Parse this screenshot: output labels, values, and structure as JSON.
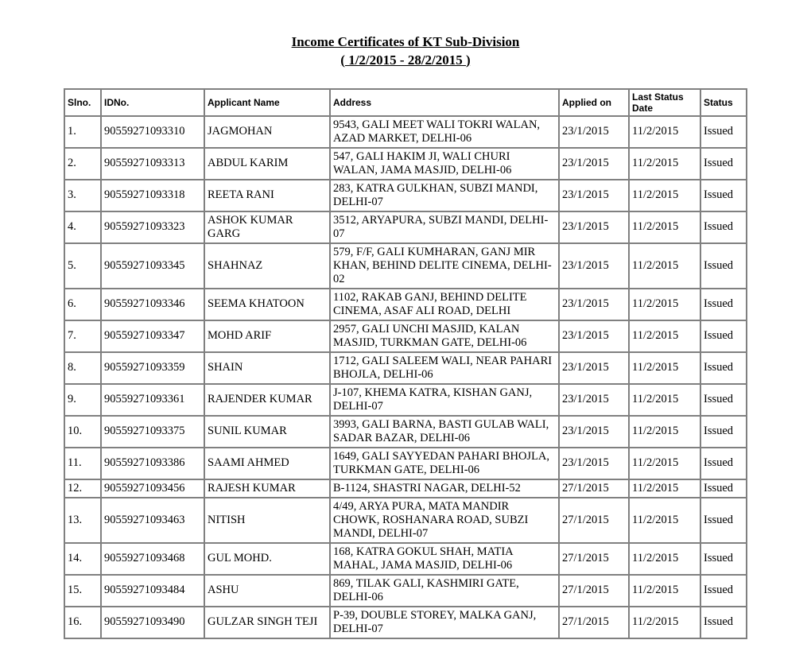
{
  "title": "Income Certificates of KT Sub-Division",
  "subtitle": "( 1/2/2015 - 28/2/2015 )",
  "columns": [
    "Slno.",
    "IDNo.",
    "Applicant Name",
    "Address",
    "Applied on",
    "Last Status Date",
    "Status"
  ],
  "rows": [
    {
      "slno": "1.",
      "idno": "90559271093310",
      "name": "JAGMOHAN",
      "address": "9543, GALI MEET WALI TOKRI WALAN, AZAD MARKET, DELHI-06",
      "applied": "23/1/2015",
      "lastdate": "11/2/2015",
      "status": "Issued"
    },
    {
      "slno": "2.",
      "idno": "90559271093313",
      "name": "ABDUL KARIM",
      "address": "547, GALI HAKIM JI, WALI CHURI WALAN, JAMA MASJID, DELHI-06",
      "applied": "23/1/2015",
      "lastdate": "11/2/2015",
      "status": "Issued"
    },
    {
      "slno": "3.",
      "idno": "90559271093318",
      "name": "REETA RANI",
      "address": "283, KATRA GULKHAN, SUBZI MANDI, DELHI-07",
      "applied": "23/1/2015",
      "lastdate": "11/2/2015",
      "status": "Issued"
    },
    {
      "slno": "4.",
      "idno": "90559271093323",
      "name": "ASHOK KUMAR GARG",
      "address": "3512, ARYAPURA, SUBZI MANDI, DELHI-07",
      "applied": "23/1/2015",
      "lastdate": "11/2/2015",
      "status": "Issued"
    },
    {
      "slno": "5.",
      "idno": "90559271093345",
      "name": "SHAHNAZ",
      "address": "579, F/F, GALI KUMHARAN, GANJ MIR KHAN, BEHIND DELITE CINEMA, DELHI-02",
      "applied": "23/1/2015",
      "lastdate": "11/2/2015",
      "status": "Issued"
    },
    {
      "slno": "6.",
      "idno": "90559271093346",
      "name": "SEEMA KHATOON",
      "address": "1102, RAKAB GANJ, BEHIND DELITE CINEMA, ASAF ALI ROAD, DELHI",
      "applied": "23/1/2015",
      "lastdate": "11/2/2015",
      "status": "Issued"
    },
    {
      "slno": "7.",
      "idno": "90559271093347",
      "name": "MOHD ARIF",
      "address": "2957, GALI UNCHI MASJID, KALAN MASJID, TURKMAN GATE, DELHI-06",
      "applied": "23/1/2015",
      "lastdate": "11/2/2015",
      "status": "Issued"
    },
    {
      "slno": "8.",
      "idno": "90559271093359",
      "name": "SHAIN",
      "address": "1712, GALI SALEEM WALI, NEAR PAHARI BHOJLA, DELHI-06",
      "applied": "23/1/2015",
      "lastdate": "11/2/2015",
      "status": "Issued"
    },
    {
      "slno": "9.",
      "idno": "90559271093361",
      "name": "RAJENDER KUMAR",
      "address": "J-107, KHEMA KATRA, KISHAN GANJ, DELHI-07",
      "applied": "23/1/2015",
      "lastdate": "11/2/2015",
      "status": "Issued"
    },
    {
      "slno": "10.",
      "idno": "90559271093375",
      "name": "SUNIL KUMAR",
      "address": "3993, GALI BARNA, BASTI GULAB WALI, SADAR BAZAR, DELHI-06",
      "applied": "23/1/2015",
      "lastdate": "11/2/2015",
      "status": "Issued"
    },
    {
      "slno": "11.",
      "idno": "90559271093386",
      "name": "SAAMI AHMED",
      "address": "1649, GALI SAYYEDAN PAHARI BHOJLA, TURKMAN GATE, DELHI-06",
      "applied": "23/1/2015",
      "lastdate": "11/2/2015",
      "status": "Issued"
    },
    {
      "slno": "12.",
      "idno": "90559271093456",
      "name": "RAJESH KUMAR",
      "address": "B-1124, SHASTRI NAGAR, DELHI-52",
      "applied": "27/1/2015",
      "lastdate": "11/2/2015",
      "status": "Issued"
    },
    {
      "slno": "13.",
      "idno": "90559271093463",
      "name": "NITISH",
      "address": "4/49, ARYA PURA, MATA MANDIR CHOWK, ROSHANARA ROAD, SUBZI MANDI, DELHI-07",
      "applied": "27/1/2015",
      "lastdate": "11/2/2015",
      "status": "Issued"
    },
    {
      "slno": "14.",
      "idno": "90559271093468",
      "name": "GUL MOHD.",
      "address": "168, KATRA GOKUL SHAH, MATIA MAHAL, JAMA MASJID, DELHI-06",
      "applied": "27/1/2015",
      "lastdate": "11/2/2015",
      "status": "Issued"
    },
    {
      "slno": "15.",
      "idno": "90559271093484",
      "name": "ASHU",
      "address": "869, TILAK GALI, KASHMIRI GATE, DELHI-06",
      "applied": "27/1/2015",
      "lastdate": "11/2/2015",
      "status": "Issued"
    },
    {
      "slno": "16.",
      "idno": "90559271093490",
      "name": "GULZAR SINGH TEJI",
      "address": "P-39, DOUBLE STOREY, MALKA GANJ, DELHI-07",
      "applied": "27/1/2015",
      "lastdate": "11/2/2015",
      "status": "Issued"
    }
  ]
}
